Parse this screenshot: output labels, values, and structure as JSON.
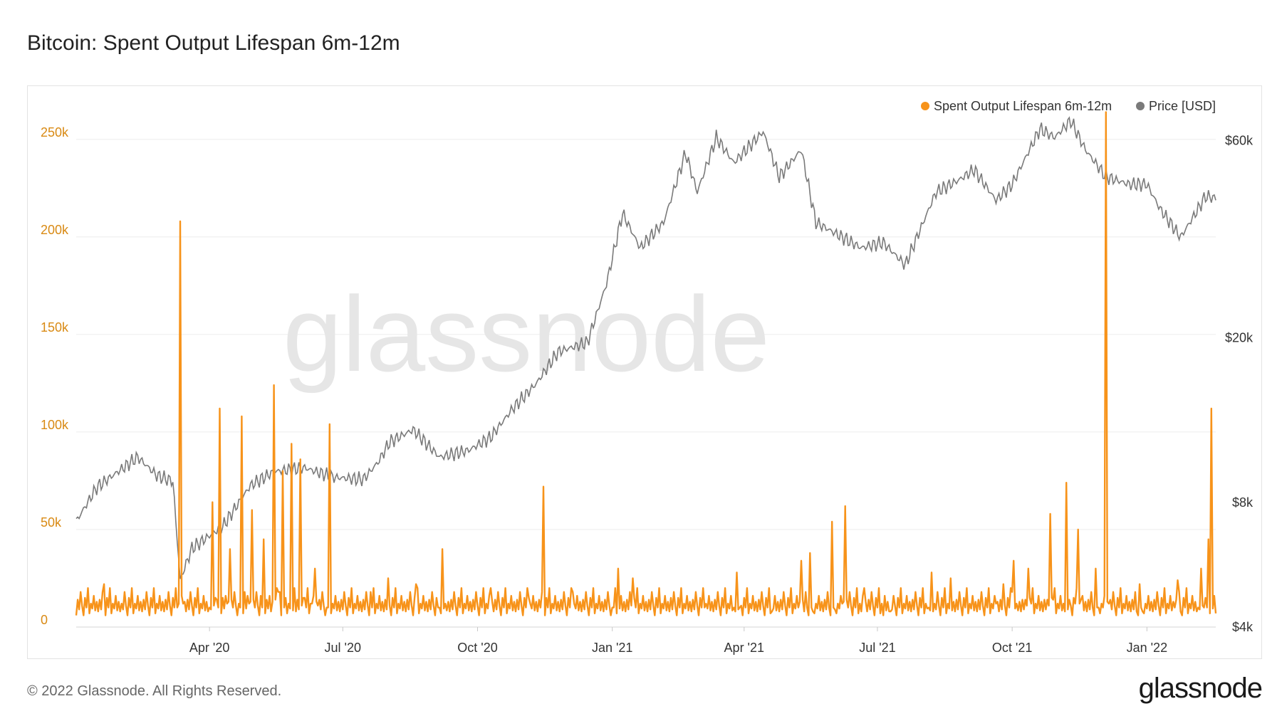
{
  "header": {
    "title": "Bitcoin: Spent Output Lifespan 6m-12m"
  },
  "footer": {
    "copyright": "© 2022 Glassnode. All Rights Reserved.",
    "brand": "glassnode"
  },
  "watermark": "glassnode",
  "colors": {
    "sopl": "#f7931a",
    "price": "#7a7a7a",
    "left_axis": "#d98a14",
    "grid": "#ececec"
  },
  "chart_data": {
    "type": "line",
    "title": "Bitcoin: Spent Output Lifespan 6m-12m",
    "x_range": [
      "2020-01-01",
      "2022-02-17"
    ],
    "x_tick_labels": [
      {
        "date": "2020-04-01",
        "label": "Apr '20"
      },
      {
        "date": "2020-07-01",
        "label": "Jul '20"
      },
      {
        "date": "2020-10-01",
        "label": "Oct '20"
      },
      {
        "date": "2021-01-01",
        "label": "Jan '21"
      },
      {
        "date": "2021-04-01",
        "label": "Apr '21"
      },
      {
        "date": "2021-07-01",
        "label": "Jul '21"
      },
      {
        "date": "2021-10-01",
        "label": "Oct '21"
      },
      {
        "date": "2022-01-01",
        "label": "Jan '22"
      }
    ],
    "left_axis": {
      "scale": "linear",
      "range": [
        0,
        270000
      ],
      "ticks": [
        {
          "value": 0,
          "label": "0"
        },
        {
          "value": 50000,
          "label": "50k"
        },
        {
          "value": 100000,
          "label": "100k"
        },
        {
          "value": 150000,
          "label": "150k"
        },
        {
          "value": 200000,
          "label": "200k"
        },
        {
          "value": 250000,
          "label": "250k"
        }
      ]
    },
    "right_axis": {
      "scale": "log",
      "range": [
        4000,
        75000
      ],
      "ticks": [
        {
          "value": 4000,
          "label": "$4k"
        },
        {
          "value": 8000,
          "label": "$8k"
        },
        {
          "value": 20000,
          "label": "$20k"
        },
        {
          "value": 60000,
          "label": "$60k"
        }
      ]
    },
    "grid": true,
    "legend_position": "top-right",
    "series": [
      {
        "name": "Spent Output Lifespan 6m-12m",
        "axis": "left",
        "color": "#f7931a",
        "baseline_pattern": [
          8000,
          14000,
          9000,
          18000,
          11000,
          6000,
          15000,
          10000,
          20000,
          7000,
          12000,
          9500,
          16000,
          8500,
          13000
        ],
        "points": [
          [
            "2020-01-01",
            6000
          ],
          [
            "2020-01-20",
            22000
          ],
          [
            "2020-02-01",
            12000
          ],
          [
            "2020-03-10",
            10000
          ],
          [
            "2020-03-12",
            208000
          ],
          [
            "2020-03-14",
            12000
          ],
          [
            "2020-04-01",
            10000
          ],
          [
            "2020-04-03",
            64000
          ],
          [
            "2020-04-05",
            15000
          ],
          [
            "2020-04-06",
            14000
          ],
          [
            "2020-04-08",
            112000
          ],
          [
            "2020-04-10",
            15000
          ],
          [
            "2020-04-13",
            12000
          ],
          [
            "2020-04-15",
            40000
          ],
          [
            "2020-04-17",
            10000
          ],
          [
            "2020-04-21",
            12000
          ],
          [
            "2020-04-23",
            108000
          ],
          [
            "2020-04-25",
            18000
          ],
          [
            "2020-04-28",
            12000
          ],
          [
            "2020-04-30",
            60000
          ],
          [
            "2020-05-02",
            10000
          ],
          [
            "2020-05-06",
            16000
          ],
          [
            "2020-05-08",
            45000
          ],
          [
            "2020-05-10",
            14000
          ],
          [
            "2020-05-13",
            8000
          ],
          [
            "2020-05-15",
            124000
          ],
          [
            "2020-05-17",
            20000
          ],
          [
            "2020-05-19",
            18000
          ],
          [
            "2020-05-21",
            80000
          ],
          [
            "2020-05-23",
            15000
          ],
          [
            "2020-05-25",
            12000
          ],
          [
            "2020-05-27",
            94000
          ],
          [
            "2020-05-29",
            20000
          ],
          [
            "2020-05-31",
            14000
          ],
          [
            "2020-06-02",
            86000
          ],
          [
            "2020-06-04",
            15000
          ],
          [
            "2020-06-10",
            12000
          ],
          [
            "2020-06-12",
            30000
          ],
          [
            "2020-06-14",
            11000
          ],
          [
            "2020-06-20",
            10000
          ],
          [
            "2020-06-22",
            104000
          ],
          [
            "2020-06-24",
            12000
          ],
          [
            "2020-07-20",
            18000
          ],
          [
            "2020-08-01",
            25000
          ],
          [
            "2020-08-20",
            22000
          ],
          [
            "2020-09-05",
            10000
          ],
          [
            "2020-09-07",
            40000
          ],
          [
            "2020-09-09",
            12000
          ],
          [
            "2020-10-10",
            20000
          ],
          [
            "2020-11-05",
            15000
          ],
          [
            "2020-11-13",
            10000
          ],
          [
            "2020-11-15",
            72000
          ],
          [
            "2020-11-17",
            15000
          ],
          [
            "2020-12-05",
            18000
          ],
          [
            "2021-01-01",
            10000
          ],
          [
            "2021-01-05",
            30000
          ],
          [
            "2021-01-15",
            25000
          ],
          [
            "2021-02-10",
            15000
          ],
          [
            "2021-03-05",
            10000
          ],
          [
            "2021-03-25",
            10000
          ],
          [
            "2021-03-27",
            28000
          ],
          [
            "2021-03-29",
            10000
          ],
          [
            "2021-04-20",
            8000
          ],
          [
            "2021-05-08",
            10000
          ],
          [
            "2021-05-10",
            34000
          ],
          [
            "2021-05-12",
            8000
          ],
          [
            "2021-05-14",
            10000
          ],
          [
            "2021-05-16",
            38000
          ],
          [
            "2021-05-18",
            8000
          ],
          [
            "2021-05-29",
            10000
          ],
          [
            "2021-05-31",
            54000
          ],
          [
            "2021-06-02",
            9000
          ],
          [
            "2021-06-07",
            12000
          ],
          [
            "2021-06-09",
            62000
          ],
          [
            "2021-06-11",
            10000
          ],
          [
            "2021-06-20",
            8000
          ],
          [
            "2021-06-22",
            20000
          ],
          [
            "2021-07-05",
            6000
          ],
          [
            "2021-07-10",
            8000
          ],
          [
            "2021-07-12",
            16000
          ],
          [
            "2021-08-05",
            10000
          ],
          [
            "2021-08-07",
            28000
          ],
          [
            "2021-08-09",
            12000
          ],
          [
            "2021-08-20",
            25000
          ],
          [
            "2021-09-20",
            12000
          ],
          [
            "2021-09-25",
            22000
          ],
          [
            "2021-10-01",
            18000
          ],
          [
            "2021-10-02",
            34000
          ],
          [
            "2021-10-04",
            12000
          ],
          [
            "2021-10-10",
            14000
          ],
          [
            "2021-10-12",
            30000
          ],
          [
            "2021-10-14",
            12000
          ],
          [
            "2021-10-25",
            14000
          ],
          [
            "2021-10-27",
            58000
          ],
          [
            "2021-10-29",
            14000
          ],
          [
            "2021-11-05",
            12000
          ],
          [
            "2021-11-07",
            74000
          ],
          [
            "2021-11-09",
            14000
          ],
          [
            "2021-11-13",
            12000
          ],
          [
            "2021-11-15",
            50000
          ],
          [
            "2021-11-17",
            14000
          ],
          [
            "2021-11-25",
            10000
          ],
          [
            "2021-11-27",
            30000
          ],
          [
            "2021-11-29",
            10000
          ],
          [
            "2021-12-02",
            10000
          ],
          [
            "2021-12-04",
            264000
          ],
          [
            "2021-12-06",
            12000
          ],
          [
            "2021-12-25",
            8000
          ],
          [
            "2021-12-27",
            22000
          ],
          [
            "2021-12-29",
            8000
          ],
          [
            "2022-01-20",
            10000
          ],
          [
            "2022-01-22",
            24000
          ],
          [
            "2022-01-24",
            8000
          ],
          [
            "2022-02-05",
            10000
          ],
          [
            "2022-02-07",
            30000
          ],
          [
            "2022-02-09",
            10000
          ],
          [
            "2022-02-12",
            45000
          ],
          [
            "2022-02-14",
            112000
          ],
          [
            "2022-02-17",
            7000
          ]
        ]
      },
      {
        "name": "Price [USD]",
        "axis": "right",
        "color": "#7a7a7a",
        "points": [
          [
            "2020-01-01",
            7200
          ],
          [
            "2020-01-15",
            8700
          ],
          [
            "2020-02-12",
            10300
          ],
          [
            "2020-02-25",
            9300
          ],
          [
            "2020-03-07",
            9000
          ],
          [
            "2020-03-12",
            5200
          ],
          [
            "2020-03-20",
            6200
          ],
          [
            "2020-04-10",
            7000
          ],
          [
            "2020-04-29",
            8800
          ],
          [
            "2020-05-15",
            9500
          ],
          [
            "2020-06-05",
            9700
          ],
          [
            "2020-06-25",
            9200
          ],
          [
            "2020-07-15",
            9100
          ],
          [
            "2020-07-25",
            10000
          ],
          [
            "2020-08-02",
            11200
          ],
          [
            "2020-08-18",
            12000
          ],
          [
            "2020-09-05",
            10300
          ],
          [
            "2020-09-25",
            10700
          ],
          [
            "2020-10-10",
            11500
          ],
          [
            "2020-10-25",
            13500
          ],
          [
            "2020-11-10",
            15500
          ],
          [
            "2020-11-25",
            18500
          ],
          [
            "2020-12-15",
            19500
          ],
          [
            "2020-12-28",
            27000
          ],
          [
            "2021-01-08",
            40000
          ],
          [
            "2021-01-20",
            33000
          ],
          [
            "2021-02-05",
            38000
          ],
          [
            "2021-02-20",
            56000
          ],
          [
            "2021-02-28",
            45000
          ],
          [
            "2021-03-13",
            61000
          ],
          [
            "2021-03-25",
            53000
          ],
          [
            "2021-04-14",
            63000
          ],
          [
            "2021-04-25",
            49000
          ],
          [
            "2021-05-10",
            57000
          ],
          [
            "2021-05-20",
            38000
          ],
          [
            "2021-06-01",
            36000
          ],
          [
            "2021-06-20",
            33000
          ],
          [
            "2021-07-05",
            34000
          ],
          [
            "2021-07-20",
            30000
          ],
          [
            "2021-08-10",
            45000
          ],
          [
            "2021-08-25",
            48000
          ],
          [
            "2021-09-05",
            51000
          ],
          [
            "2021-09-20",
            43000
          ],
          [
            "2021-10-01",
            47000
          ],
          [
            "2021-10-20",
            64000
          ],
          [
            "2021-10-30",
            61000
          ],
          [
            "2021-11-10",
            67000
          ],
          [
            "2021-11-20",
            57000
          ],
          [
            "2021-12-04",
            49000
          ],
          [
            "2021-12-20",
            47000
          ],
          [
            "2022-01-01",
            47000
          ],
          [
            "2022-01-10",
            41000
          ],
          [
            "2022-01-24",
            35000
          ],
          [
            "2022-02-05",
            41000
          ],
          [
            "2022-02-10",
            44000
          ],
          [
            "2022-02-17",
            43500
          ]
        ]
      }
    ]
  }
}
